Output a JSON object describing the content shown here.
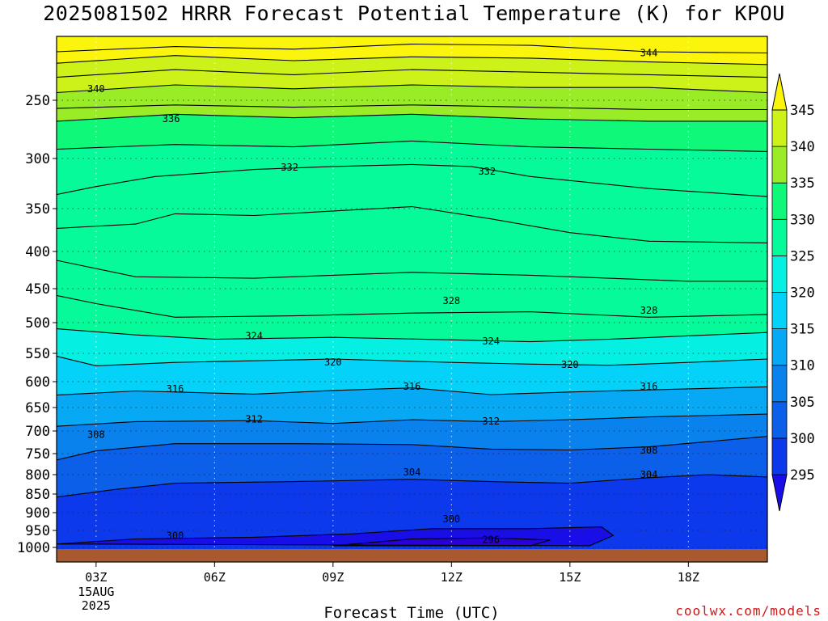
{
  "title": "2025081502 HRRR Forecast Potential Temperature (K) for KPOU",
  "credit": "coolwx.com/models",
  "chart_data": {
    "type": "heatmap",
    "title": "2025081502 HRRR Forecast Potential Temperature (K) for KPOU",
    "xlabel": "Forecast Time (UTC)",
    "ylabel": "",
    "x_ticks": [
      "03Z",
      "06Z",
      "09Z",
      "12Z",
      "15Z",
      "18Z"
    ],
    "x_tick_hours": [
      3,
      6,
      9,
      12,
      15,
      18
    ],
    "x_date_lines": [
      "15AUG",
      "2025"
    ],
    "xlim_hours": [
      2,
      20
    ],
    "y_ticks": [
      250,
      300,
      350,
      400,
      450,
      500,
      550,
      600,
      650,
      700,
      750,
      800,
      850,
      900,
      950,
      1000
    ],
    "ylim_hPa": [
      200,
      1000
    ],
    "y_scale": "log-pressure",
    "grid": true,
    "colorbar": {
      "levels": [
        295,
        300,
        305,
        310,
        315,
        320,
        325,
        330,
        335,
        340,
        345
      ],
      "labels": [
        "295",
        "300",
        "305",
        "310",
        "315",
        "320",
        "325",
        "330",
        "335",
        "340",
        "345"
      ],
      "colors": [
        "#1a0ee8",
        "#0c39ec",
        "#0b5fe8",
        "#0a82ee",
        "#07a8f4",
        "#04d2f8",
        "#05f0e2",
        "#06fa9a",
        "#10f87a",
        "#9aec26",
        "#cdf21a",
        "#fbf50e"
      ]
    },
    "contour_interval": 4,
    "contours": [
      {
        "value": 296,
        "points": [
          [
            9.0,
            995
          ],
          [
            11.0,
            975
          ],
          [
            13.0,
            972
          ],
          [
            14.5,
            978
          ],
          [
            14.0,
            995
          ]
        ]
      },
      {
        "value": 300,
        "points": [
          [
            2.0,
            990
          ],
          [
            4.0,
            975
          ],
          [
            7.0,
            970
          ],
          [
            9.5,
            960
          ],
          [
            11.5,
            945
          ],
          [
            14.0,
            945
          ],
          [
            15.8,
            940
          ],
          [
            16.1,
            965
          ],
          [
            15.5,
            995
          ]
        ]
      },
      {
        "value": 304,
        "points": [
          [
            2.0,
            858
          ],
          [
            3.5,
            838
          ],
          [
            5.0,
            822
          ],
          [
            8.0,
            818
          ],
          [
            11.0,
            812
          ],
          [
            13.0,
            818
          ],
          [
            15.0,
            822
          ],
          [
            17.0,
            808
          ],
          [
            18.5,
            800
          ],
          [
            20.0,
            806
          ]
        ]
      },
      {
        "value": 308,
        "points": [
          [
            2.0,
            765
          ],
          [
            3.0,
            744
          ],
          [
            5.0,
            728
          ],
          [
            8.0,
            728
          ],
          [
            11.0,
            730
          ],
          [
            13.0,
            740
          ],
          [
            15.0,
            742
          ],
          [
            17.0,
            735
          ],
          [
            20.0,
            712
          ]
        ]
      },
      {
        "value": 312,
        "points": [
          [
            2.0,
            690
          ],
          [
            4.0,
            680
          ],
          [
            7.0,
            678
          ],
          [
            9.0,
            684
          ],
          [
            11.0,
            676
          ],
          [
            13.0,
            680
          ],
          [
            15.0,
            676
          ],
          [
            17.0,
            670
          ],
          [
            20.0,
            664
          ]
        ]
      },
      {
        "value": 316,
        "points": [
          [
            2.0,
            626
          ],
          [
            4.0,
            618
          ],
          [
            7.0,
            624
          ],
          [
            9.0,
            617
          ],
          [
            11.0,
            612
          ],
          [
            13.0,
            625
          ],
          [
            15.0,
            620
          ],
          [
            17.0,
            616
          ],
          [
            20.0,
            610
          ]
        ]
      },
      {
        "value": 320,
        "points": [
          [
            2.0,
            555
          ],
          [
            3.0,
            572
          ],
          [
            5.0,
            566
          ],
          [
            9.0,
            560
          ],
          [
            12.0,
            566
          ],
          [
            14.0,
            569
          ],
          [
            16.0,
            571
          ],
          [
            18.0,
            566
          ],
          [
            20.0,
            560
          ]
        ]
      },
      {
        "value": 324,
        "points": [
          [
            2.0,
            510
          ],
          [
            4.0,
            520
          ],
          [
            6.0,
            527
          ],
          [
            9.0,
            524
          ],
          [
            12.0,
            528
          ],
          [
            14.0,
            531
          ],
          [
            16.0,
            527
          ],
          [
            20.0,
            516
          ]
        ]
      },
      {
        "value": 328,
        "points": [
          [
            2.0,
            460
          ],
          [
            3.0,
            472
          ],
          [
            5.0,
            492
          ],
          [
            8.0,
            490
          ],
          [
            11.0,
            486
          ],
          [
            14.0,
            484
          ],
          [
            17.0,
            492
          ],
          [
            20.0,
            488
          ]
        ]
      },
      {
        "value": 330,
        "points": [
          [
            2.0,
            412
          ],
          [
            4.0,
            434
          ],
          [
            7.0,
            436
          ],
          [
            11.0,
            428
          ],
          [
            14.0,
            432
          ],
          [
            18.0,
            440
          ],
          [
            20.0,
            440
          ]
        ]
      },
      {
        "value": 330.5,
        "points": [
          [
            2.0,
            373
          ],
          [
            4.0,
            368
          ],
          [
            5.0,
            356
          ],
          [
            7.0,
            358
          ],
          [
            11.0,
            348
          ],
          [
            13.0,
            362
          ],
          [
            15.0,
            378
          ],
          [
            17.0,
            388
          ],
          [
            20.0,
            390
          ]
        ]
      },
      {
        "value": 332,
        "points": [
          [
            2.0,
            336
          ],
          [
            3.0,
            328
          ],
          [
            4.5,
            318
          ],
          [
            7.0,
            311
          ],
          [
            9.0,
            308
          ],
          [
            11.0,
            306
          ],
          [
            12.5,
            308
          ],
          [
            14.0,
            318
          ],
          [
            17.0,
            330
          ],
          [
            20.0,
            338
          ]
        ]
      },
      {
        "value": 334,
        "points": [
          [
            2.0,
            292
          ],
          [
            5.0,
            288
          ],
          [
            8.0,
            290
          ],
          [
            11.0,
            285
          ],
          [
            14.0,
            290
          ],
          [
            17.0,
            292
          ],
          [
            20.0,
            294
          ]
        ]
      },
      {
        "value": 336,
        "points": [
          [
            2.0,
            268
          ],
          [
            5.0,
            262
          ],
          [
            8.0,
            265
          ],
          [
            11.0,
            262
          ],
          [
            14.0,
            266
          ],
          [
            17.0,
            268
          ],
          [
            20.0,
            268
          ]
        ]
      },
      {
        "value": 338,
        "points": [
          [
            2.0,
            257
          ],
          [
            5.0,
            254
          ],
          [
            8.0,
            256
          ],
          [
            11.0,
            254
          ],
          [
            14.0,
            256
          ],
          [
            17.0,
            258
          ],
          [
            20.0,
            258
          ]
        ]
      },
      {
        "value": 340,
        "points": [
          [
            2.0,
            244
          ],
          [
            5.0,
            238
          ],
          [
            8.0,
            241
          ],
          [
            11.0,
            238
          ],
          [
            14.0,
            240
          ],
          [
            17.0,
            240
          ],
          [
            20.0,
            244
          ]
        ]
      },
      {
        "value": 341,
        "points": [
          [
            2.0,
            232
          ],
          [
            5.0,
            226
          ],
          [
            8.0,
            230
          ],
          [
            11.0,
            226
          ],
          [
            14.0,
            228
          ],
          [
            17.0,
            230
          ],
          [
            20.0,
            232
          ]
        ]
      },
      {
        "value": 342,
        "points": [
          [
            2.0,
            221
          ],
          [
            5.0,
            215
          ],
          [
            8.0,
            219
          ],
          [
            11.0,
            216
          ],
          [
            14.0,
            217
          ],
          [
            17.0,
            220
          ],
          [
            20.0,
            222
          ]
        ]
      },
      {
        "value": 344,
        "points": [
          [
            2.0,
            212
          ],
          [
            5.0,
            208
          ],
          [
            8.0,
            210
          ],
          [
            11.0,
            206
          ],
          [
            14.0,
            207
          ],
          [
            17.0,
            212
          ],
          [
            20.0,
            213
          ]
        ]
      }
    ],
    "contour_labels": [
      {
        "text": "344",
        "x": 17.0,
        "y": 213
      },
      {
        "text": "340",
        "x": 3.0,
        "y": 241
      },
      {
        "text": "336",
        "x": 4.9,
        "y": 266
      },
      {
        "text": "332",
        "x": 7.9,
        "y": 309
      },
      {
        "text": "332",
        "x": 12.9,
        "y": 313
      },
      {
        "text": "328",
        "x": 12.0,
        "y": 468
      },
      {
        "text": "328",
        "x": 17.0,
        "y": 482
      },
      {
        "text": "324",
        "x": 7.0,
        "y": 522
      },
      {
        "text": "324",
        "x": 13.0,
        "y": 530
      },
      {
        "text": "320",
        "x": 9.0,
        "y": 566
      },
      {
        "text": "320",
        "x": 15.0,
        "y": 570
      },
      {
        "text": "316",
        "x": 5.0,
        "y": 614
      },
      {
        "text": "316",
        "x": 11.0,
        "y": 609
      },
      {
        "text": "316",
        "x": 17.0,
        "y": 609
      },
      {
        "text": "312",
        "x": 7.0,
        "y": 675
      },
      {
        "text": "312",
        "x": 13.0,
        "y": 679
      },
      {
        "text": "308",
        "x": 3.0,
        "y": 708
      },
      {
        "text": "308",
        "x": 17.0,
        "y": 743
      },
      {
        "text": "304",
        "x": 11.0,
        "y": 794
      },
      {
        "text": "304",
        "x": 17.0,
        "y": 800
      },
      {
        "text": "300",
        "x": 5.0,
        "y": 965
      },
      {
        "text": "300",
        "x": 12.0,
        "y": 918
      },
      {
        "text": "296",
        "x": 13.0,
        "y": 977
      }
    ]
  }
}
